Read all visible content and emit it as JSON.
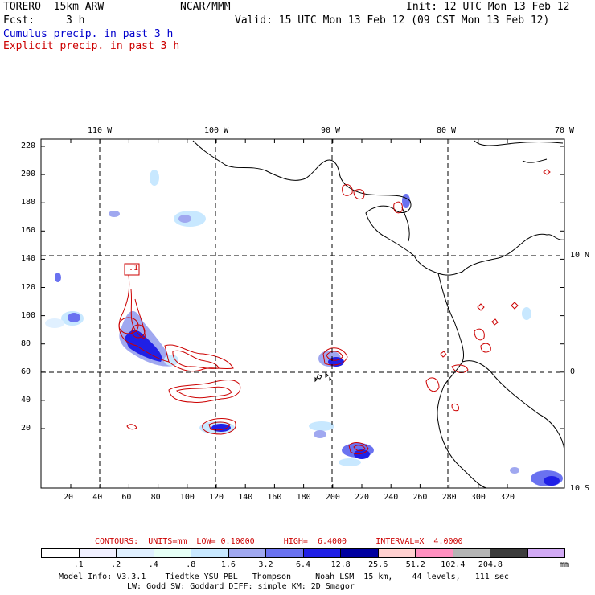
{
  "header": {
    "model": "TORERO  15km ARW",
    "org": "NCAR/MMM",
    "init": "Init: 12 UTC Mon 13 Feb 12",
    "fcst_label": "Fcst:",
    "fcst_value": "3 h",
    "valid": "Valid: 15 UTC Mon 13 Feb 12 (09 CST Mon 13 Feb 12)",
    "cumulus": "Cumulus precip. in past 3 h",
    "explicit": "Explicit precip. in past 3 h"
  },
  "colors": {
    "cumulus": "#0000cc",
    "explicit": "#cc0000",
    "legend_title": "#cc0000"
  },
  "top_lon_labels": [
    "110 W",
    "100 W",
    "90 W",
    "80 W",
    "70 W"
  ],
  "right_lat_labels": [
    "10 N",
    "0",
    "10 S"
  ],
  "x_ticks": [
    "20",
    "40",
    "60",
    "80",
    "100",
    "120",
    "140",
    "160",
    "180",
    "200",
    "220",
    "240",
    "260",
    "280",
    "300",
    "320"
  ],
  "y_ticks": [
    "220",
    "200",
    "180",
    "160",
    "140",
    "120",
    "100",
    "80",
    "60",
    "40",
    "20"
  ],
  "contour_label": ".1",
  "legend": {
    "title": "CONTOURS:  UNITS=mm  LOW= 0.10000      HIGH=  6.4000      INTERVAL=X  4.0000",
    "values": [
      ".1",
      ".2",
      ".4",
      ".8",
      "1.6",
      "3.2",
      "6.4",
      "12.8",
      "25.6",
      "51.2",
      "102.4",
      "204.8"
    ],
    "unit": "mm",
    "colors": [
      "#ffffff",
      "#f0f0ff",
      "#e0f0ff",
      "#e6fff6",
      "#c8e8ff",
      "#a0a8f0",
      "#6a72f0",
      "#2020e6",
      "#0000a0",
      "#ffd0d0",
      "#ff90c0",
      "#b4b4b4",
      "#3c3c3c",
      "#d2aaf5"
    ]
  },
  "footer": {
    "line1": "Model Info: V3.3.1    Tiedtke YSU PBL   Thompson     Noah LSM  15 km,    44 levels,   111 sec",
    "line2": "LW: Godd SW: Goddard DIFF: simple KM: 2D Smagor"
  }
}
